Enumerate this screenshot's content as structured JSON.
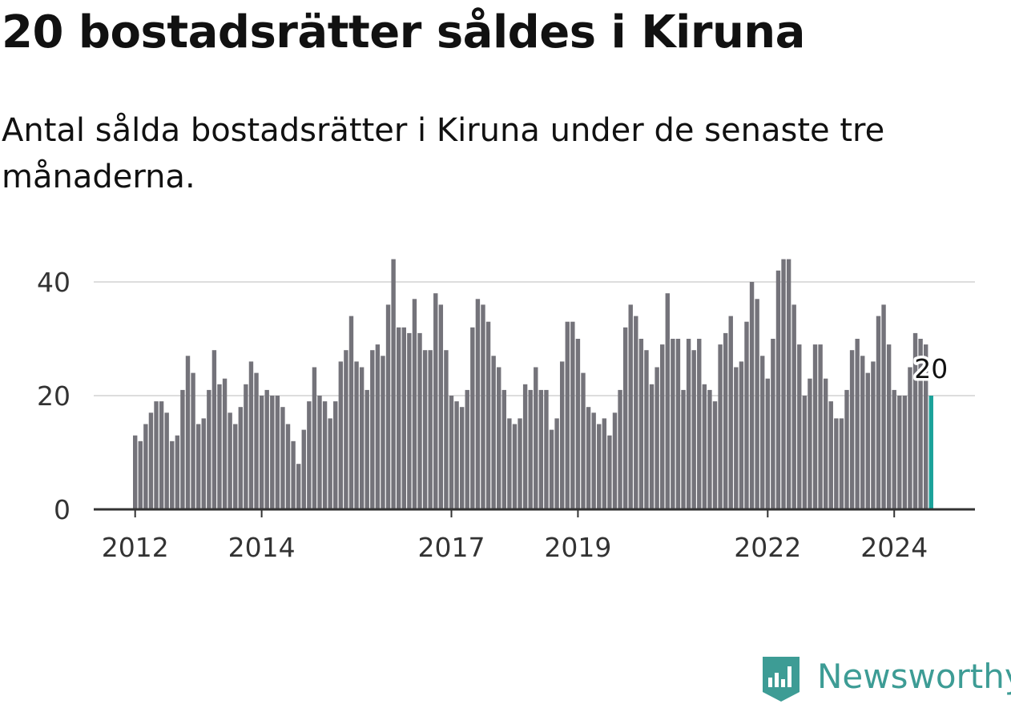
{
  "title": "20 bostadsrätter såldes i Kiruna",
  "subtitle": "Antal sålda bostadsrätter i Kiruna under de senaste tre månaderna.",
  "brand": "Newsworthy",
  "colors": {
    "bar": "#74737a",
    "highlight": "#1ba29a",
    "grid": "#dddddd",
    "axis": "#333333",
    "brand": "#3d9c95"
  },
  "chart_data": {
    "type": "bar",
    "ylim": [
      0,
      48
    ],
    "yticks": [
      0,
      20,
      40
    ],
    "xtick_labels": [
      "2012",
      "2014",
      "2017",
      "2019",
      "2022",
      "2024"
    ],
    "xtick_index": [
      0,
      24,
      60,
      84,
      120,
      144
    ],
    "start": "2012-01",
    "end": "2024-08",
    "values": [
      13,
      12,
      15,
      17,
      19,
      19,
      17,
      12,
      13,
      21,
      27,
      24,
      15,
      16,
      21,
      28,
      22,
      23,
      17,
      15,
      18,
      22,
      26,
      24,
      20,
      21,
      20,
      20,
      18,
      15,
      12,
      8,
      14,
      19,
      25,
      20,
      19,
      16,
      19,
      26,
      28,
      34,
      26,
      25,
      21,
      28,
      29,
      27,
      36,
      44,
      32,
      32,
      31,
      37,
      31,
      28,
      28,
      38,
      36,
      28,
      20,
      19,
      18,
      21,
      32,
      37,
      36,
      33,
      27,
      25,
      21,
      16,
      15,
      16,
      22,
      21,
      25,
      21,
      21,
      14,
      16,
      26,
      33,
      33,
      30,
      24,
      18,
      17,
      15,
      16,
      13,
      17,
      21,
      32,
      36,
      34,
      30,
      28,
      22,
      25,
      29,
      38,
      30,
      30,
      21,
      30,
      28,
      30,
      22,
      21,
      19,
      29,
      31,
      34,
      25,
      26,
      33,
      40,
      37,
      27,
      23,
      30,
      42,
      44,
      44,
      36,
      29,
      20,
      23,
      29,
      29,
      23,
      19,
      16,
      16,
      21,
      28,
      30,
      27,
      24,
      26,
      34,
      36,
      29,
      21,
      20,
      20,
      25,
      31,
      30,
      29,
      20
    ],
    "highlight_value": "20"
  }
}
